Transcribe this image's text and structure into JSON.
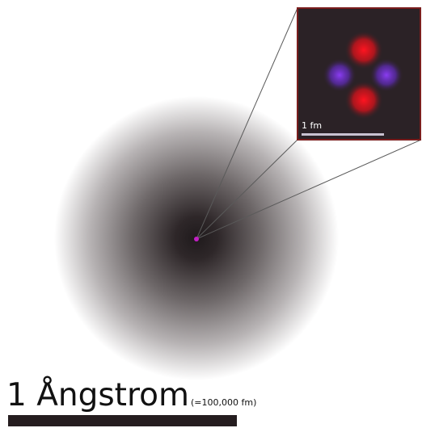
{
  "colors": {
    "cloud_center": "#221c1e",
    "inset_background": "#2b2226",
    "inset_border": "#7a1d1d",
    "proton": "#e8101a",
    "neutron": "#7a2ee0",
    "nucleus_dot": "#c21fc4",
    "scale_bar": "#251d1f",
    "scale_line": "#c9c2d0",
    "zoom_lines": "#555555"
  },
  "nucleus": {
    "particles": [
      {
        "type": "proton",
        "icon": "proton-particle"
      },
      {
        "type": "proton",
        "icon": "proton-particle"
      },
      {
        "type": "neutron",
        "icon": "neutron-particle"
      },
      {
        "type": "neutron",
        "icon": "neutron-particle"
      }
    ],
    "scale_label": "1 fm"
  },
  "scale": {
    "main_label": "1 Ångstrom",
    "sub_label": "(=100,000 fm)"
  }
}
